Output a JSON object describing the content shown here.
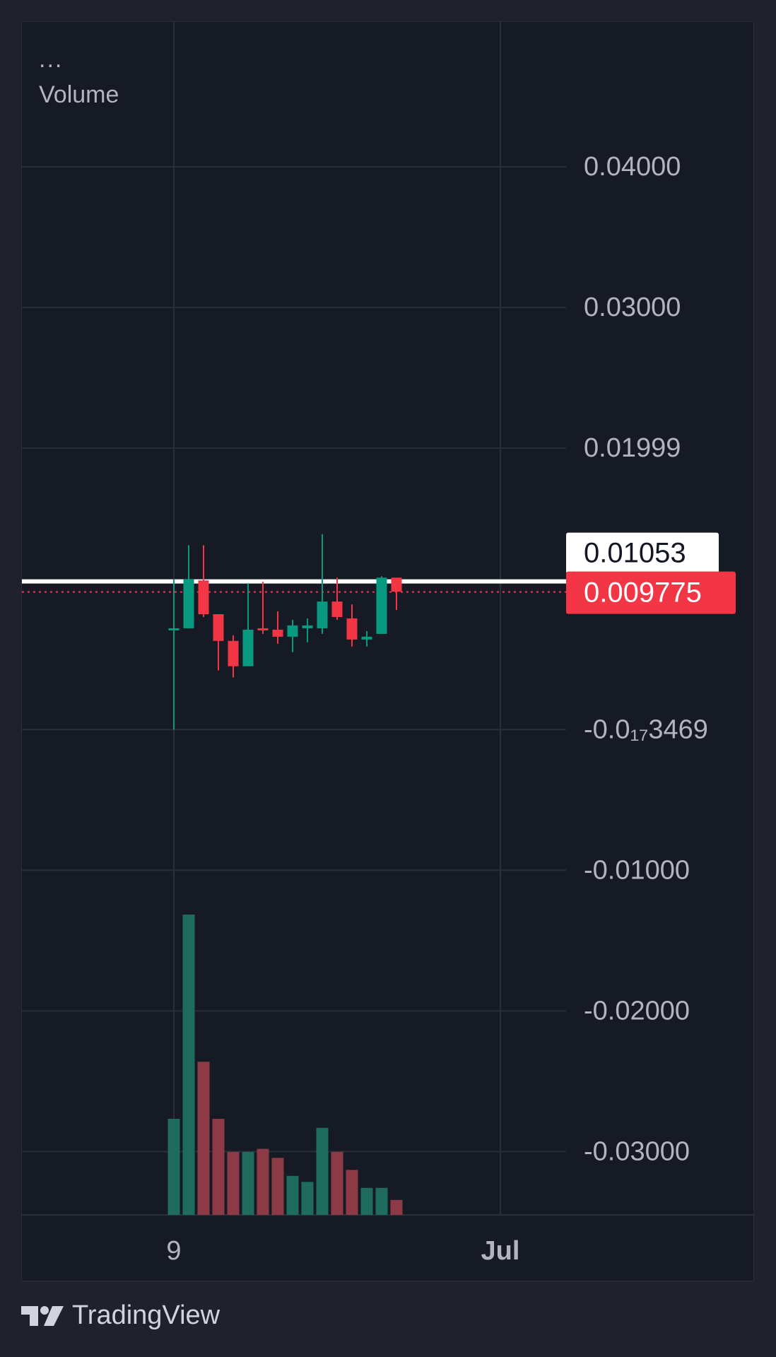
{
  "legend": {
    "menu": "...",
    "volume_label": "Volume"
  },
  "brand": {
    "name": "TradingView",
    "logo_icon": "tradingview-logo-icon"
  },
  "colors": {
    "up": "#089981",
    "down": "#f23645",
    "volume_up": "#1f6b5e",
    "volume_down": "#8c3a45",
    "grid": "#2a2e39",
    "axis_text": "#b2b5be",
    "last_price_bg": "#f23645",
    "crosshair_label_bg": "#ffffff"
  },
  "chart_data": {
    "type": "candlestick",
    "y_axis": {
      "ticks": [
        {
          "value": 0.04,
          "label": "0.04000"
        },
        {
          "value": 0.03,
          "label": "0.03000"
        },
        {
          "value": 0.02,
          "label": "0.01999"
        },
        {
          "value": 0.0,
          "label": "-0.0₁₇3469"
        },
        {
          "value": -0.01,
          "label": "-0.01000"
        },
        {
          "value": -0.02,
          "label": "-0.02000"
        },
        {
          "value": -0.03,
          "label": "-0.03000"
        }
      ],
      "range": [
        -0.0345,
        0.0503
      ]
    },
    "x_axis": {
      "ticks": [
        {
          "index": 0,
          "label": "9",
          "bold": false
        },
        {
          "index": 22,
          "label": "Jul",
          "bold": true
        }
      ]
    },
    "price_labels": [
      {
        "value": 0.01053,
        "label": "0.01053",
        "style": "crosshair"
      },
      {
        "value": 0.009775,
        "label": "0.009775",
        "style": "last"
      }
    ],
    "candles": [
      {
        "o": 0.0072,
        "h": 0.0107,
        "l": 0.0,
        "c": 0.0072,
        "v": 0.32
      },
      {
        "o": 0.0072,
        "h": 0.0131,
        "l": 0.0072,
        "c": 0.0107,
        "v": 1.0
      },
      {
        "o": 0.0106,
        "h": 0.0131,
        "l": 0.008,
        "c": 0.0082,
        "v": 0.51
      },
      {
        "o": 0.0082,
        "h": 0.0082,
        "l": 0.0042,
        "c": 0.0063,
        "v": 0.32
      },
      {
        "o": 0.0063,
        "h": 0.0067,
        "l": 0.0037,
        "c": 0.0045,
        "v": 0.21
      },
      {
        "o": 0.0045,
        "h": 0.0104,
        "l": 0.0045,
        "c": 0.0071,
        "v": 0.21
      },
      {
        "o": 0.0072,
        "h": 0.0105,
        "l": 0.0068,
        "c": 0.0071,
        "v": 0.22
      },
      {
        "o": 0.0071,
        "h": 0.0084,
        "l": 0.0061,
        "c": 0.0066,
        "v": 0.19
      },
      {
        "o": 0.0066,
        "h": 0.0078,
        "l": 0.0055,
        "c": 0.0074,
        "v": 0.13
      },
      {
        "o": 0.0072,
        "h": 0.0079,
        "l": 0.0062,
        "c": 0.0074,
        "v": 0.11
      },
      {
        "o": 0.0072,
        "h": 0.0139,
        "l": 0.0068,
        "c": 0.0091,
        "v": 0.29
      },
      {
        "o": 0.0091,
        "h": 0.0108,
        "l": 0.0078,
        "c": 0.008,
        "v": 0.21
      },
      {
        "o": 0.0079,
        "h": 0.0089,
        "l": 0.0059,
        "c": 0.0064,
        "v": 0.15
      },
      {
        "o": 0.0064,
        "h": 0.007,
        "l": 0.0059,
        "c": 0.0066,
        "v": 0.09
      },
      {
        "o": 0.0068,
        "h": 0.0109,
        "l": 0.0068,
        "c": 0.0108,
        "v": 0.09
      },
      {
        "o": 0.0108,
        "h": 0.0108,
        "l": 0.0085,
        "c": 0.0098,
        "v": 0.05
      }
    ]
  }
}
